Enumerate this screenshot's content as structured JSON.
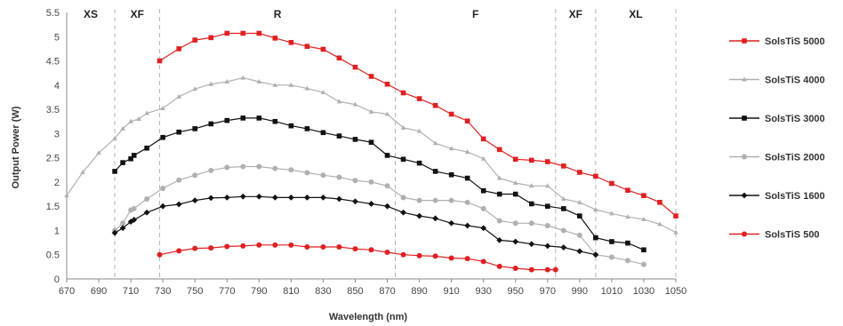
{
  "chart_data": {
    "type": "line",
    "xlabel": "Wavelength (nm)",
    "ylabel": "Output Power (W)",
    "xlim": [
      670,
      1050
    ],
    "ylim": [
      0,
      5.5
    ],
    "xticks": [
      670,
      690,
      710,
      730,
      750,
      770,
      790,
      810,
      830,
      850,
      870,
      890,
      910,
      930,
      950,
      970,
      990,
      1010,
      1030,
      1050
    ],
    "yticks": [
      0,
      0.5,
      1,
      1.5,
      2,
      2.5,
      3,
      3.5,
      4,
      4.5,
      5,
      5.5
    ],
    "grid": false,
    "legend_position": "right",
    "regions": [
      {
        "label": "XS",
        "from": 670,
        "to": 700
      },
      {
        "label": "XF",
        "from": 700,
        "to": 728
      },
      {
        "label": "R",
        "from": 728,
        "to": 875
      },
      {
        "label": "F",
        "from": 875,
        "to": 975
      },
      {
        "label": "XF",
        "from": 975,
        "to": 1000
      },
      {
        "label": "XL",
        "from": 1000,
        "to": 1050
      }
    ],
    "region_dividers": [
      700,
      728,
      875,
      975,
      1000,
      1050
    ],
    "series": [
      {
        "name": "SolsTiS 5000",
        "color": "#e02020",
        "marker": "square",
        "points": [
          [
            728,
            4.5
          ],
          [
            740,
            4.75
          ],
          [
            750,
            4.93
          ],
          [
            760,
            4.98
          ],
          [
            770,
            5.07
          ],
          [
            780,
            5.07
          ],
          [
            790,
            5.07
          ],
          [
            800,
            4.97
          ],
          [
            810,
            4.88
          ],
          [
            820,
            4.8
          ],
          [
            830,
            4.74
          ],
          [
            840,
            4.56
          ],
          [
            850,
            4.37
          ],
          [
            860,
            4.18
          ],
          [
            870,
            4.02
          ],
          [
            880,
            3.84
          ],
          [
            890,
            3.72
          ],
          [
            900,
            3.58
          ],
          [
            910,
            3.4
          ],
          [
            920,
            3.26
          ],
          [
            930,
            2.89
          ],
          [
            940,
            2.67
          ],
          [
            950,
            2.47
          ],
          [
            960,
            2.45
          ],
          [
            970,
            2.42
          ],
          [
            980,
            2.33
          ],
          [
            990,
            2.2
          ],
          [
            1000,
            2.12
          ],
          [
            1010,
            1.97
          ],
          [
            1020,
            1.83
          ],
          [
            1030,
            1.72
          ],
          [
            1040,
            1.58
          ],
          [
            1050,
            1.3
          ]
        ]
      },
      {
        "name": "SolsTiS 4000",
        "color": "#b0b0b0",
        "marker": "triangle",
        "points": [
          [
            670,
            1.72
          ],
          [
            680,
            2.2
          ],
          [
            690,
            2.6
          ],
          [
            700,
            2.9
          ],
          [
            705,
            3.1
          ],
          [
            710,
            3.25
          ],
          [
            715,
            3.3
          ],
          [
            720,
            3.42
          ],
          [
            730,
            3.52
          ],
          [
            740,
            3.76
          ],
          [
            750,
            3.92
          ],
          [
            760,
            4.02
          ],
          [
            770,
            4.07
          ],
          [
            780,
            4.15
          ],
          [
            790,
            4.07
          ],
          [
            800,
            4.0
          ],
          [
            810,
            4.0
          ],
          [
            820,
            3.93
          ],
          [
            830,
            3.85
          ],
          [
            840,
            3.66
          ],
          [
            850,
            3.6
          ],
          [
            860,
            3.45
          ],
          [
            870,
            3.4
          ],
          [
            880,
            3.12
          ],
          [
            890,
            3.05
          ],
          [
            900,
            2.8
          ],
          [
            910,
            2.69
          ],
          [
            920,
            2.62
          ],
          [
            930,
            2.48
          ],
          [
            940,
            2.08
          ],
          [
            950,
            1.98
          ],
          [
            960,
            1.92
          ],
          [
            970,
            1.92
          ],
          [
            980,
            1.65
          ],
          [
            990,
            1.58
          ],
          [
            1000,
            1.43
          ],
          [
            1010,
            1.35
          ],
          [
            1020,
            1.28
          ],
          [
            1030,
            1.23
          ],
          [
            1040,
            1.13
          ],
          [
            1050,
            0.96
          ]
        ]
      },
      {
        "name": "SolsTiS 3000",
        "color": "#111111",
        "marker": "square",
        "points": [
          [
            700,
            2.22
          ],
          [
            705,
            2.4
          ],
          [
            710,
            2.48
          ],
          [
            712,
            2.55
          ],
          [
            720,
            2.7
          ],
          [
            730,
            2.92
          ],
          [
            740,
            3.03
          ],
          [
            750,
            3.1
          ],
          [
            760,
            3.2
          ],
          [
            770,
            3.27
          ],
          [
            780,
            3.32
          ],
          [
            790,
            3.32
          ],
          [
            800,
            3.25
          ],
          [
            810,
            3.16
          ],
          [
            820,
            3.1
          ],
          [
            830,
            3.02
          ],
          [
            840,
            2.95
          ],
          [
            850,
            2.88
          ],
          [
            860,
            2.82
          ],
          [
            870,
            2.55
          ],
          [
            880,
            2.47
          ],
          [
            890,
            2.39
          ],
          [
            900,
            2.22
          ],
          [
            910,
            2.15
          ],
          [
            920,
            2.08
          ],
          [
            930,
            1.82
          ],
          [
            940,
            1.75
          ],
          [
            950,
            1.75
          ],
          [
            960,
            1.55
          ],
          [
            970,
            1.5
          ],
          [
            980,
            1.45
          ],
          [
            990,
            1.3
          ],
          [
            1000,
            0.85
          ],
          [
            1010,
            0.77
          ],
          [
            1020,
            0.74
          ],
          [
            1030,
            0.6
          ]
        ]
      },
      {
        "name": "SolsTiS 2000",
        "color": "#b0b0b0",
        "marker": "circle",
        "points": [
          [
            700,
            1.0
          ],
          [
            705,
            1.15
          ],
          [
            710,
            1.42
          ],
          [
            712,
            1.45
          ],
          [
            720,
            1.65
          ],
          [
            730,
            1.87
          ],
          [
            740,
            2.04
          ],
          [
            750,
            2.14
          ],
          [
            760,
            2.24
          ],
          [
            770,
            2.3
          ],
          [
            780,
            2.32
          ],
          [
            790,
            2.32
          ],
          [
            800,
            2.28
          ],
          [
            810,
            2.25
          ],
          [
            820,
            2.19
          ],
          [
            830,
            2.14
          ],
          [
            840,
            2.1
          ],
          [
            850,
            2.03
          ],
          [
            860,
            2.0
          ],
          [
            870,
            1.92
          ],
          [
            880,
            1.68
          ],
          [
            890,
            1.62
          ],
          [
            900,
            1.62
          ],
          [
            910,
            1.62
          ],
          [
            920,
            1.58
          ],
          [
            930,
            1.45
          ],
          [
            940,
            1.2
          ],
          [
            950,
            1.15
          ],
          [
            960,
            1.15
          ],
          [
            970,
            1.1
          ],
          [
            980,
            1.0
          ],
          [
            990,
            0.9
          ],
          [
            1000,
            0.5
          ],
          [
            1010,
            0.45
          ],
          [
            1020,
            0.38
          ],
          [
            1030,
            0.3
          ]
        ]
      },
      {
        "name": "SolsTiS 1600",
        "color": "#111111",
        "marker": "diamond",
        "points": [
          [
            700,
            0.95
          ],
          [
            705,
            1.05
          ],
          [
            710,
            1.18
          ],
          [
            712,
            1.22
          ],
          [
            720,
            1.37
          ],
          [
            730,
            1.5
          ],
          [
            740,
            1.54
          ],
          [
            750,
            1.62
          ],
          [
            760,
            1.67
          ],
          [
            770,
            1.68
          ],
          [
            780,
            1.7
          ],
          [
            790,
            1.7
          ],
          [
            800,
            1.68
          ],
          [
            810,
            1.68
          ],
          [
            820,
            1.68
          ],
          [
            830,
            1.68
          ],
          [
            840,
            1.65
          ],
          [
            850,
            1.6
          ],
          [
            860,
            1.55
          ],
          [
            870,
            1.5
          ],
          [
            880,
            1.37
          ],
          [
            890,
            1.3
          ],
          [
            900,
            1.25
          ],
          [
            910,
            1.15
          ],
          [
            920,
            1.1
          ],
          [
            930,
            1.05
          ],
          [
            940,
            0.8
          ],
          [
            950,
            0.77
          ],
          [
            960,
            0.72
          ],
          [
            970,
            0.68
          ],
          [
            980,
            0.65
          ],
          [
            990,
            0.57
          ],
          [
            1000,
            0.5
          ]
        ]
      },
      {
        "name": "SolsTiS 500",
        "color": "#e02020",
        "marker": "circle",
        "points": [
          [
            728,
            0.5
          ],
          [
            740,
            0.58
          ],
          [
            750,
            0.63
          ],
          [
            760,
            0.64
          ],
          [
            770,
            0.67
          ],
          [
            780,
            0.68
          ],
          [
            790,
            0.7
          ],
          [
            800,
            0.7
          ],
          [
            810,
            0.7
          ],
          [
            820,
            0.66
          ],
          [
            830,
            0.66
          ],
          [
            840,
            0.66
          ],
          [
            850,
            0.62
          ],
          [
            860,
            0.6
          ],
          [
            870,
            0.55
          ],
          [
            880,
            0.5
          ],
          [
            890,
            0.48
          ],
          [
            900,
            0.47
          ],
          [
            910,
            0.43
          ],
          [
            920,
            0.42
          ],
          [
            930,
            0.36
          ],
          [
            940,
            0.26
          ],
          [
            950,
            0.22
          ],
          [
            960,
            0.19
          ],
          [
            970,
            0.19
          ],
          [
            975,
            0.19
          ]
        ]
      }
    ]
  }
}
